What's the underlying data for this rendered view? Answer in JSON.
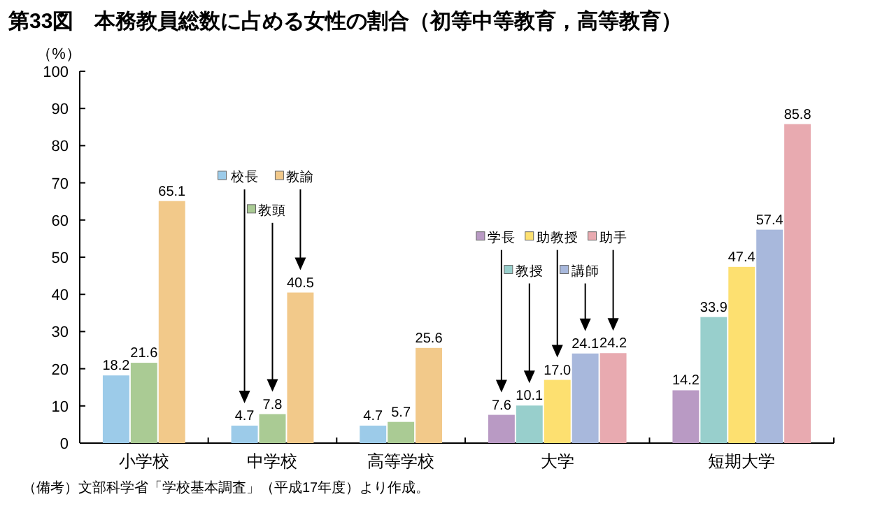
{
  "chart_data": {
    "type": "bar",
    "title": "第33図　本務教員総数に占める女性の割合（初等中等教育，高等教育）",
    "ylabel": "（%）",
    "categories": [
      "小学校",
      "中学校",
      "高等学校",
      "大学",
      "短期大学"
    ],
    "legend": "top",
    "ylim": [
      0,
      100
    ],
    "yticks": [
      0,
      10,
      20,
      30,
      40,
      50,
      60,
      70,
      80,
      90,
      100
    ],
    "series": [
      {
        "name": "校長",
        "color": "#9ccbe9",
        "values": [
          18.2,
          4.7,
          4.7,
          null,
          null
        ],
        "value_labels": [
          "18.2",
          "4.7",
          "4.7",
          null,
          null
        ]
      },
      {
        "name": "教頭",
        "color": "#aacb94",
        "values": [
          21.6,
          7.8,
          5.7,
          null,
          null
        ],
        "value_labels": [
          "21.6",
          "7.8",
          "5.7",
          null,
          null
        ]
      },
      {
        "name": "教諭",
        "color": "#f2c98a",
        "values": [
          65.1,
          40.5,
          25.6,
          null,
          null
        ],
        "value_labels": [
          "65.1",
          "40.5",
          "25.6",
          null,
          null
        ]
      },
      {
        "name": "学長",
        "color": "#b99ac4",
        "values": [
          null,
          null,
          null,
          7.6,
          14.2
        ],
        "value_labels": [
          null,
          null,
          null,
          "7.6",
          "14.2"
        ]
      },
      {
        "name": "教授",
        "color": "#98cfcc",
        "values": [
          null,
          null,
          null,
          10.1,
          33.9
        ],
        "value_labels": [
          null,
          null,
          null,
          "10.1",
          "33.9"
        ]
      },
      {
        "name": "助教授",
        "color": "#fde070",
        "values": [
          null,
          null,
          null,
          17.0,
          47.4
        ],
        "value_labels": [
          null,
          null,
          null,
          "17.0",
          "47.4"
        ]
      },
      {
        "name": "講師",
        "color": "#a8b8dc",
        "values": [
          null,
          null,
          null,
          24.1,
          57.4
        ],
        "value_labels": [
          null,
          null,
          null,
          "24.1",
          "57.4"
        ]
      },
      {
        "name": "助手",
        "color": "#e8aab0",
        "values": [
          null,
          null,
          null,
          24.2,
          85.8
        ],
        "value_labels": [
          null,
          null,
          null,
          "24.2",
          "85.8"
        ]
      }
    ],
    "annotations": [
      "（備考）文部科学省「学校基本調査」（平成17年度）より作成。"
    ]
  }
}
